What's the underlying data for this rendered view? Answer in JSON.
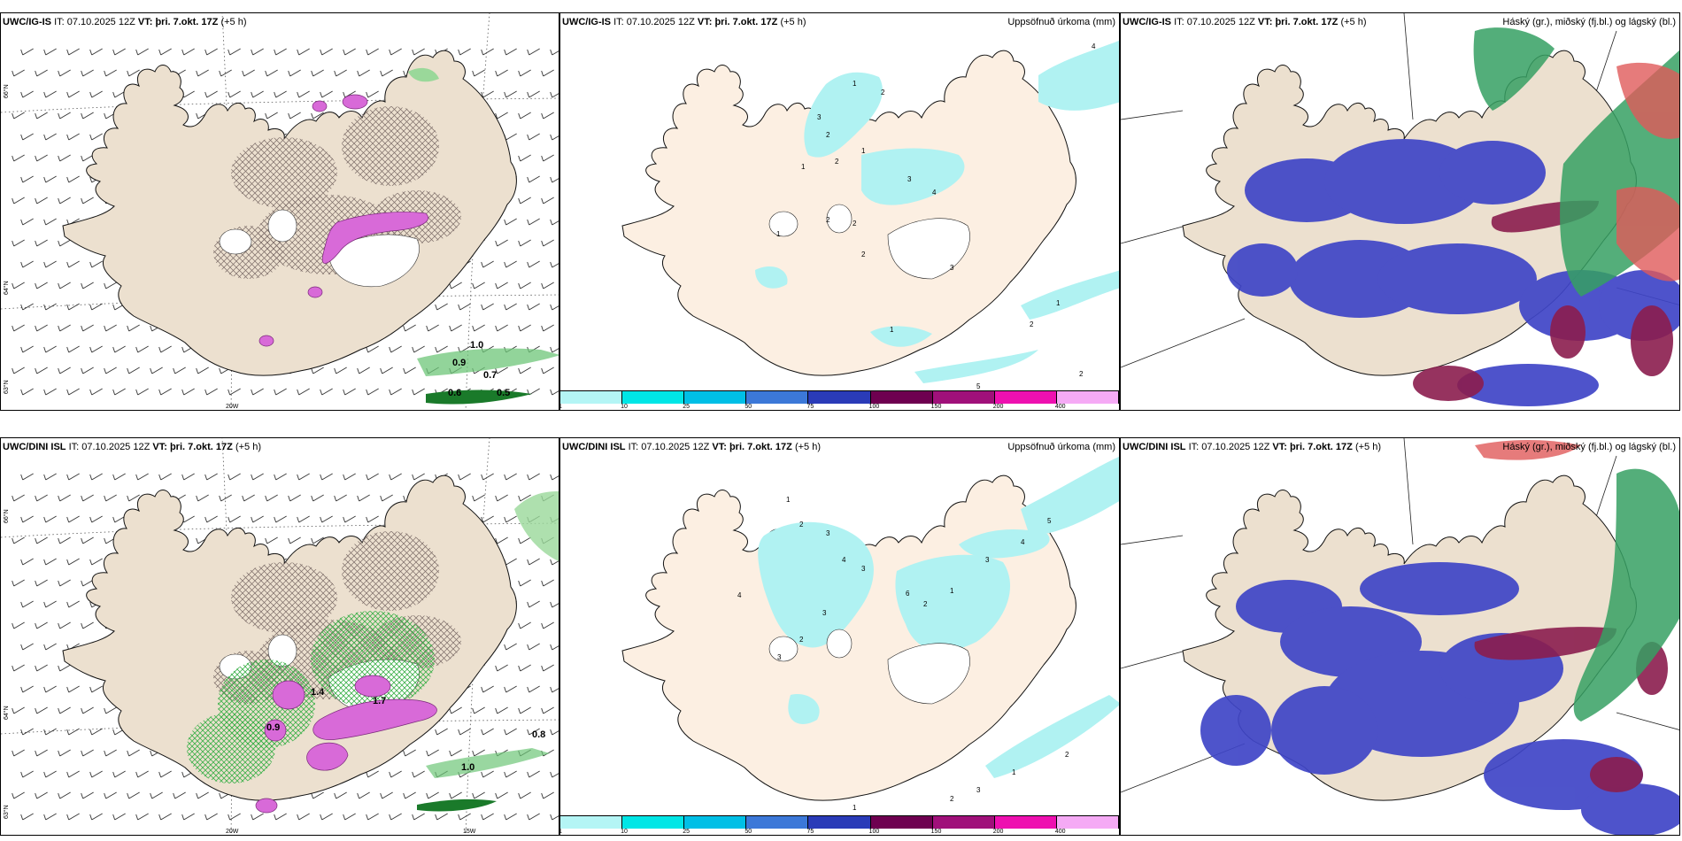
{
  "panels": [
    {
      "model": "UWC/IG-IS",
      "it_label": "IT:",
      "it": "07.10.2025 12Z",
      "vt_label": "VT:",
      "vt": "þri. 7.okt. 17Z",
      "lead": "(+5 h)",
      "title": ""
    },
    {
      "model": "UWC/IG-IS",
      "it_label": "IT:",
      "it": "07.10.2025 12Z",
      "vt_label": "VT:",
      "vt": "þri. 7.okt. 17Z",
      "lead": "(+5 h)",
      "title": "Uppsöfnuð úrkoma (mm)"
    },
    {
      "model": "UWC/IG-IS",
      "it_label": "IT:",
      "it": "07.10.2025 12Z",
      "vt_label": "VT:",
      "vt": "þri. 7.okt. 17Z",
      "lead": "(+5 h)",
      "title": "Háský (gr.), miðský (fj.bl.) og lágský (bl.)"
    },
    {
      "model": "UWC/DINI ISL",
      "it_label": "IT:",
      "it": "07.10.2025 12Z",
      "vt_label": "VT:",
      "vt": "þri. 7.okt. 17Z",
      "lead": "(+5 h)",
      "title": ""
    },
    {
      "model": "UWC/DINI ISL",
      "it_label": "IT:",
      "it": "07.10.2025 12Z",
      "vt_label": "VT:",
      "vt": "þri. 7.okt. 17Z",
      "lead": "(+5 h)",
      "title": "Uppsöfnuð úrkoma (mm)"
    },
    {
      "model": "UWC/DINI ISL",
      "it_label": "IT:",
      "it": "07.10.2025 12Z",
      "vt_label": "VT:",
      "vt": "þri. 7.okt. 17Z",
      "lead": "(+5 h)",
      "title": "Háský (gr.), miðský (fj.bl.) og lágský (bl.)"
    }
  ],
  "axis_labels": {
    "lat66": "66°N",
    "lat64": "64°N",
    "lat63": "63°N",
    "lon20": "20W",
    "lon15": "15W"
  },
  "colorbar": {
    "labels": [
      "1",
      "10",
      "25",
      "50",
      "75",
      "100",
      "150",
      "200",
      "400"
    ],
    "colors": [
      "#b4f5f5",
      "#00e6e6",
      "#00bfe6",
      "#3c78d8",
      "#2a3bb8",
      "#6e0050",
      "#a0107a",
      "#ee10b0",
      "#f5aaf5"
    ]
  },
  "values_top_left": [
    "0.9",
    "0.7",
    "0.6",
    "0.5",
    "1.0"
  ],
  "values_bot_left": [
    "0.8",
    "1.0",
    "1.4",
    "1.7",
    "0.9"
  ],
  "precip_top": [
    "1",
    "2",
    "3",
    "2",
    "1",
    "1",
    "2",
    "3",
    "4",
    "2",
    "1",
    "2",
    "2",
    "3",
    "1",
    "5",
    "2",
    "2",
    "1",
    "4"
  ],
  "precip_bot": [
    "1",
    "2",
    "3",
    "4",
    "3",
    "3",
    "2",
    "3",
    "4",
    "6",
    "2",
    "1",
    "3",
    "4",
    "5",
    "2",
    "1",
    "3",
    "2",
    "1"
  ],
  "colors": {
    "land": "#ece0cf",
    "land_precip": "#fcefe2",
    "precip_light": "#b0f2f2",
    "low_cloud": "#3f45c7",
    "mid_cloud": "#8b1d4e",
    "high_cloud": "#36a063",
    "magenta": "#d86ad8"
  }
}
